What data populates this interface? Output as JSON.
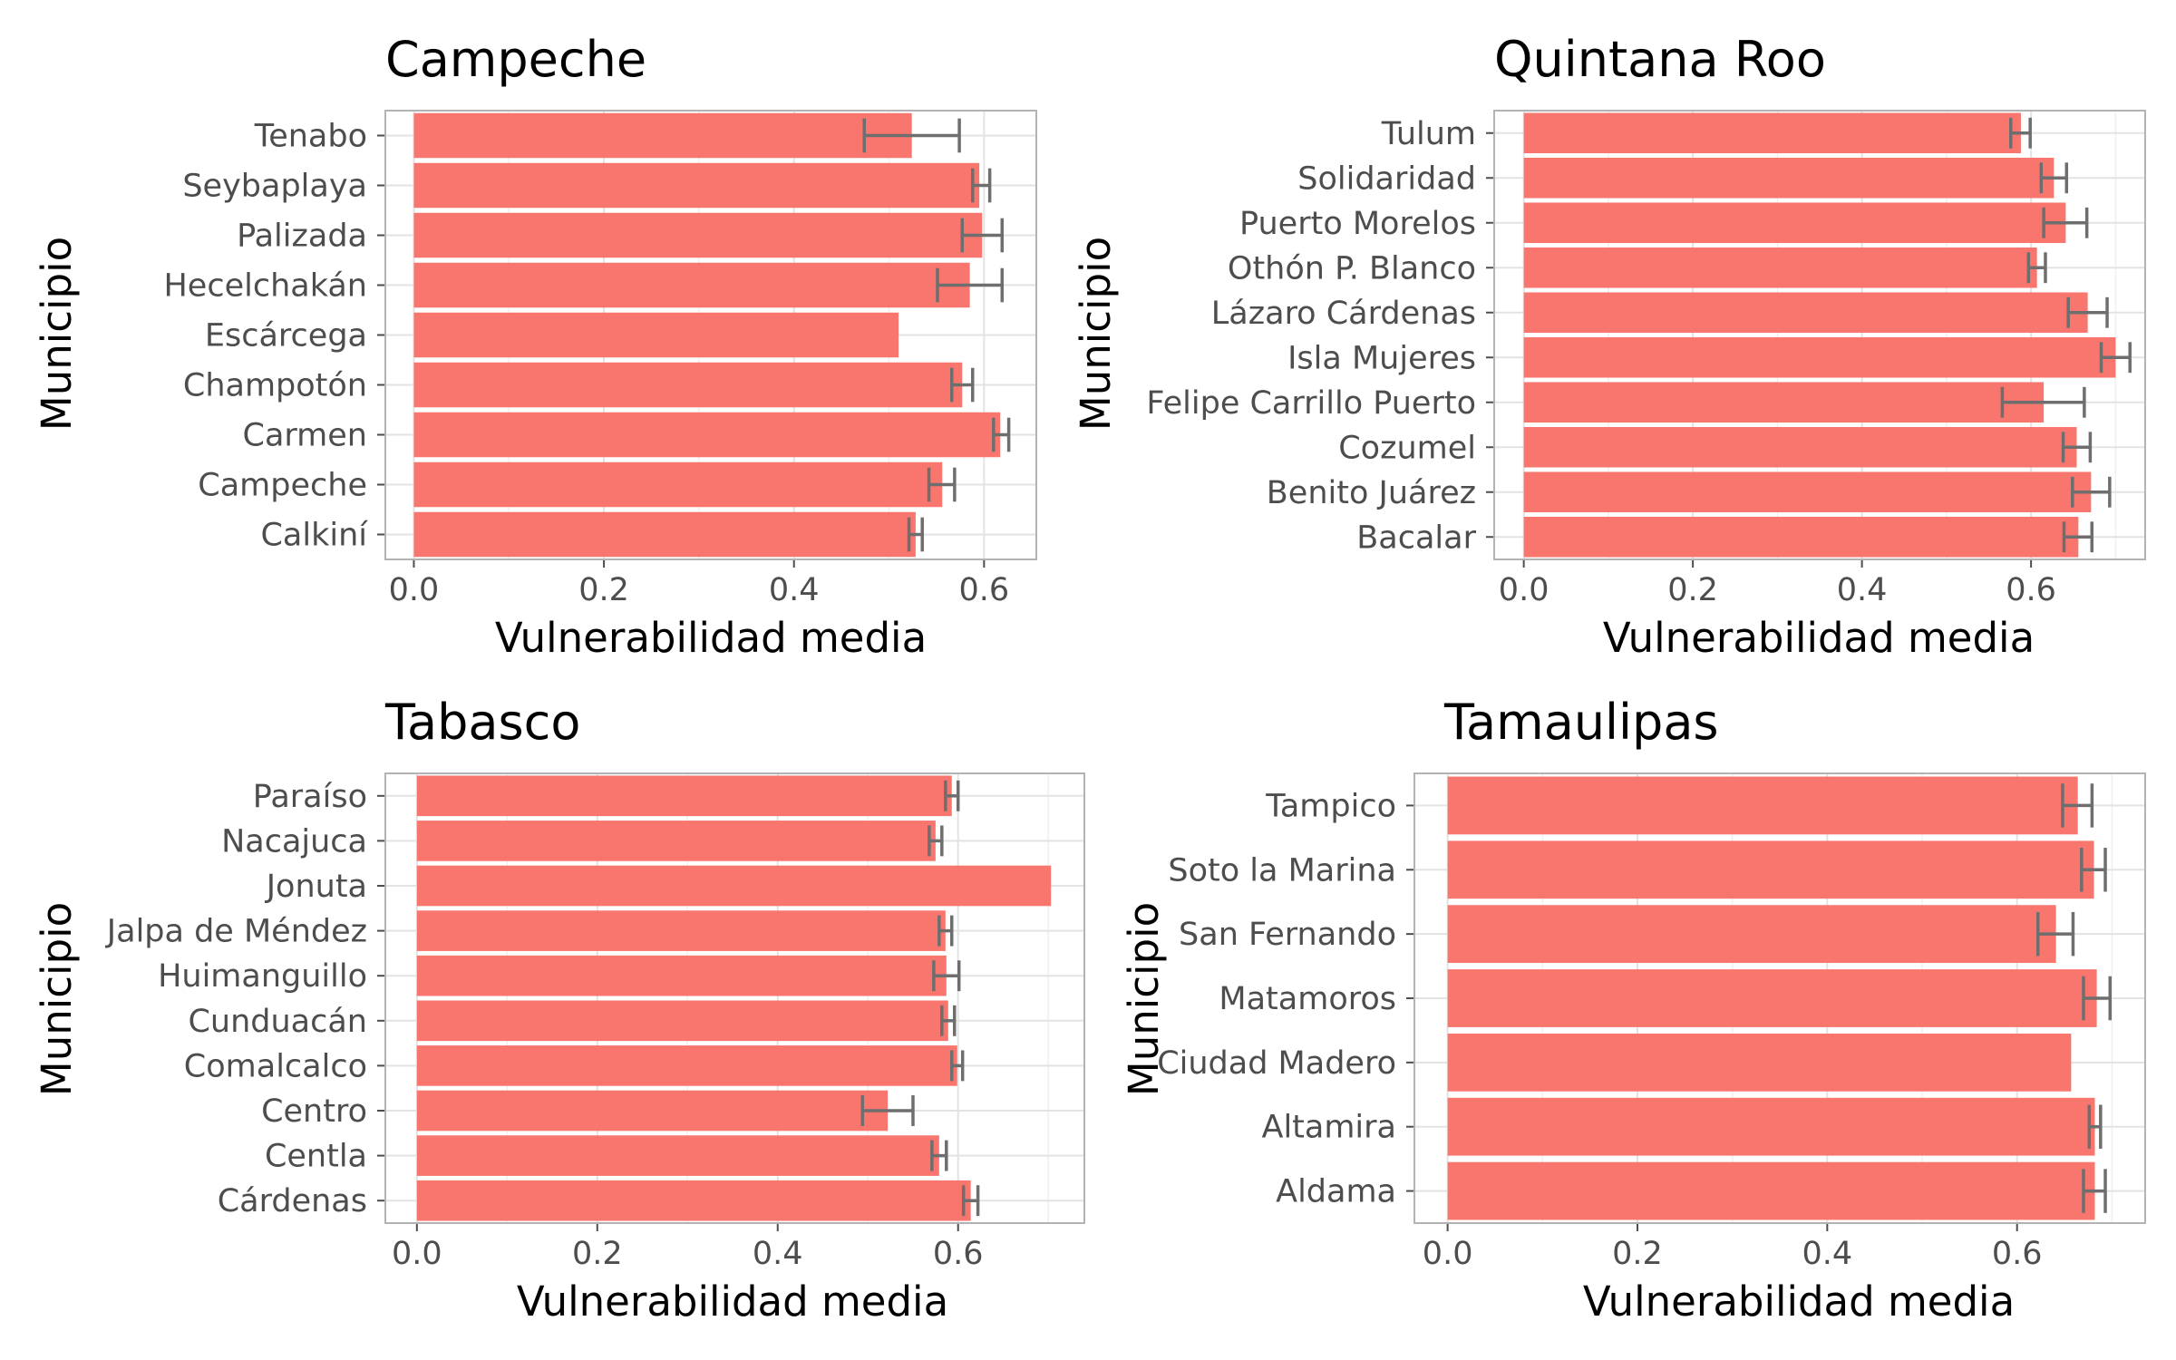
{
  "colors": {
    "bar": "#F8766D",
    "errorbar": "#6e6e6e",
    "grid": "#e3e3e3",
    "panel_border": "#b3b3b3",
    "text": "#4d4d4d"
  },
  "chart_data": [
    {
      "type": "bar",
      "title": "Campeche",
      "xlabel": "Vulnerabilidad media",
      "ylabel": "Municipio",
      "orientation": "horizontal",
      "xlim": [
        -0.03,
        0.655
      ],
      "xticks": [
        "0.0",
        "0.2",
        "0.4",
        "0.6"
      ],
      "grid": true,
      "categories": [
        "Tenabo",
        "Seybaplaya",
        "Palizada",
        "Hecelchakán",
        "Escárcega",
        "Champotón",
        "Carmen",
        "Campeche",
        "Calkiní"
      ],
      "values": [
        0.524,
        0.595,
        0.598,
        0.585,
        0.51,
        0.577,
        0.617,
        0.556,
        0.528
      ],
      "error_low": [
        0.474,
        0.588,
        0.577,
        0.551,
        null,
        0.566,
        0.61,
        0.542,
        0.521
      ],
      "error_high": [
        0.574,
        0.606,
        0.619,
        0.619,
        null,
        0.588,
        0.626,
        0.569,
        0.535
      ]
    },
    {
      "type": "bar",
      "title": "Quintana Roo",
      "xlabel": "Vulnerabilidad media",
      "ylabel": "Municipio",
      "orientation": "horizontal",
      "xlim": [
        -0.035,
        0.735
      ],
      "xticks": [
        "0.0",
        "0.2",
        "0.4",
        "0.6"
      ],
      "grid": true,
      "categories": [
        "Tulum",
        "Solidaridad",
        "Puerto Morelos",
        "Othón P. Blanco",
        "Lázaro Cárdenas",
        "Isla Mujeres",
        "Felipe Carrillo Puerto",
        "Cozumel",
        "Benito Juárez",
        "Bacalar"
      ],
      "values": [
        0.588,
        0.627,
        0.641,
        0.607,
        0.667,
        0.7,
        0.615,
        0.654,
        0.671,
        0.656
      ],
      "error_low": [
        0.576,
        0.612,
        0.615,
        0.597,
        0.644,
        0.683,
        0.566,
        0.638,
        0.649,
        0.639
      ],
      "error_high": [
        0.599,
        0.642,
        0.666,
        0.617,
        0.69,
        0.717,
        0.663,
        0.67,
        0.693,
        0.672
      ]
    },
    {
      "type": "bar",
      "title": "Tabasco",
      "xlabel": "Vulnerabilidad media",
      "ylabel": "Municipio",
      "orientation": "horizontal",
      "xlim": [
        -0.035,
        0.74
      ],
      "xticks": [
        "0.0",
        "0.2",
        "0.4",
        "0.6"
      ],
      "grid": true,
      "categories": [
        "Paraíso",
        "Nacajuca",
        "Jonuta",
        "Jalpa de Méndez",
        "Huimanguillo",
        "Cunduacán",
        "Comalcalco",
        "Centro",
        "Centla",
        "Cárdenas"
      ],
      "values": [
        0.593,
        0.575,
        0.703,
        0.586,
        0.587,
        0.589,
        0.599,
        0.522,
        0.579,
        0.614
      ],
      "error_low": [
        0.586,
        0.568,
        null,
        0.579,
        0.573,
        0.582,
        0.593,
        0.494,
        0.571,
        0.606
      ],
      "error_high": [
        0.6,
        0.582,
        null,
        0.593,
        0.601,
        0.596,
        0.605,
        0.55,
        0.587,
        0.622
      ]
    },
    {
      "type": "bar",
      "title": "Tamaulipas",
      "xlabel": "Vulnerabilidad media",
      "ylabel": "Municipio",
      "orientation": "horizontal",
      "xlim": [
        -0.035,
        0.735
      ],
      "xticks": [
        "0.0",
        "0.2",
        "0.4",
        "0.6"
      ],
      "grid": true,
      "categories": [
        "Tampico",
        "Soto la Marina",
        "San Fernando",
        "Matamoros",
        "Ciudad Madero",
        "Altamira",
        "Aldama"
      ],
      "values": [
        0.664,
        0.681,
        0.641,
        0.684,
        0.657,
        0.682,
        0.682
      ],
      "error_low": [
        0.648,
        0.668,
        0.622,
        0.67,
        null,
        0.676,
        0.67
      ],
      "error_high": [
        0.679,
        0.693,
        0.659,
        0.698,
        null,
        0.688,
        0.693
      ]
    }
  ]
}
